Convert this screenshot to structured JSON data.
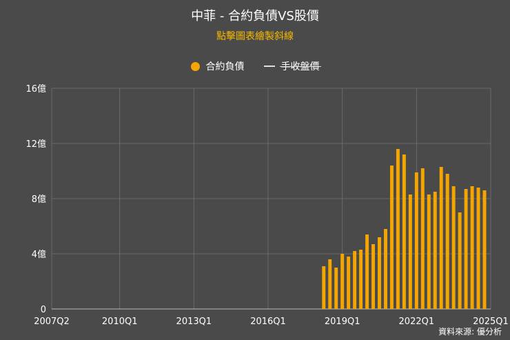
{
  "header": {
    "title": "中菲 - 合約負債VS股價",
    "subtitle": "點擊圖表繪製斜線"
  },
  "legend": {
    "items": [
      {
        "label": "合約負債",
        "symbol": "dot"
      },
      {
        "label": "手收盤價",
        "symbol": "line"
      }
    ]
  },
  "footer": {
    "source": "資料來源: 優分析"
  },
  "colors": {
    "background": "#4a4a4a",
    "bar": "#f5a500",
    "grid": "#6a6a6a",
    "subtitle": "#f5b800"
  },
  "chart_data": {
    "type": "bar",
    "title": "中菲 - 合約負債VS股價",
    "subtitle": "點擊圖表繪製斜線",
    "xlabel": "",
    "ylabel": "",
    "ylim": [
      0,
      16
    ],
    "y_ticks": [
      {
        "value": 0,
        "label": "0"
      },
      {
        "value": 4,
        "label": "4億"
      },
      {
        "value": 8,
        "label": "8億"
      },
      {
        "value": 12,
        "label": "12億"
      },
      {
        "value": 16,
        "label": "16億"
      }
    ],
    "x_ticks": [
      "2007Q2",
      "2010Q1",
      "2013Q1",
      "2016Q1",
      "2019Q1",
      "2022Q1",
      "2025Q1"
    ],
    "x_range": [
      "2007Q2",
      "2025Q1"
    ],
    "grid": true,
    "legend_position": "top-center",
    "series": [
      {
        "name": "合約負債",
        "categories": [
          "2018Q2",
          "2018Q3",
          "2018Q4",
          "2019Q1",
          "2019Q2",
          "2019Q3",
          "2019Q4",
          "2020Q1",
          "2020Q2",
          "2020Q3",
          "2020Q4",
          "2021Q1",
          "2021Q2",
          "2021Q3",
          "2021Q4",
          "2022Q1",
          "2022Q2",
          "2022Q3",
          "2022Q4",
          "2023Q1",
          "2023Q2",
          "2023Q3",
          "2023Q4",
          "2024Q1",
          "2024Q2",
          "2024Q3",
          "2024Q4"
        ],
        "values": [
          3.1,
          3.6,
          3.0,
          4.0,
          3.8,
          4.2,
          4.3,
          5.4,
          4.7,
          5.2,
          5.8,
          10.4,
          11.6,
          11.2,
          8.3,
          9.9,
          10.2,
          8.3,
          8.5,
          10.3,
          9.8,
          8.9,
          7.0,
          8.7,
          8.9,
          8.8,
          8.6
        ]
      },
      {
        "name": "手收盤價",
        "values": []
      }
    ]
  }
}
